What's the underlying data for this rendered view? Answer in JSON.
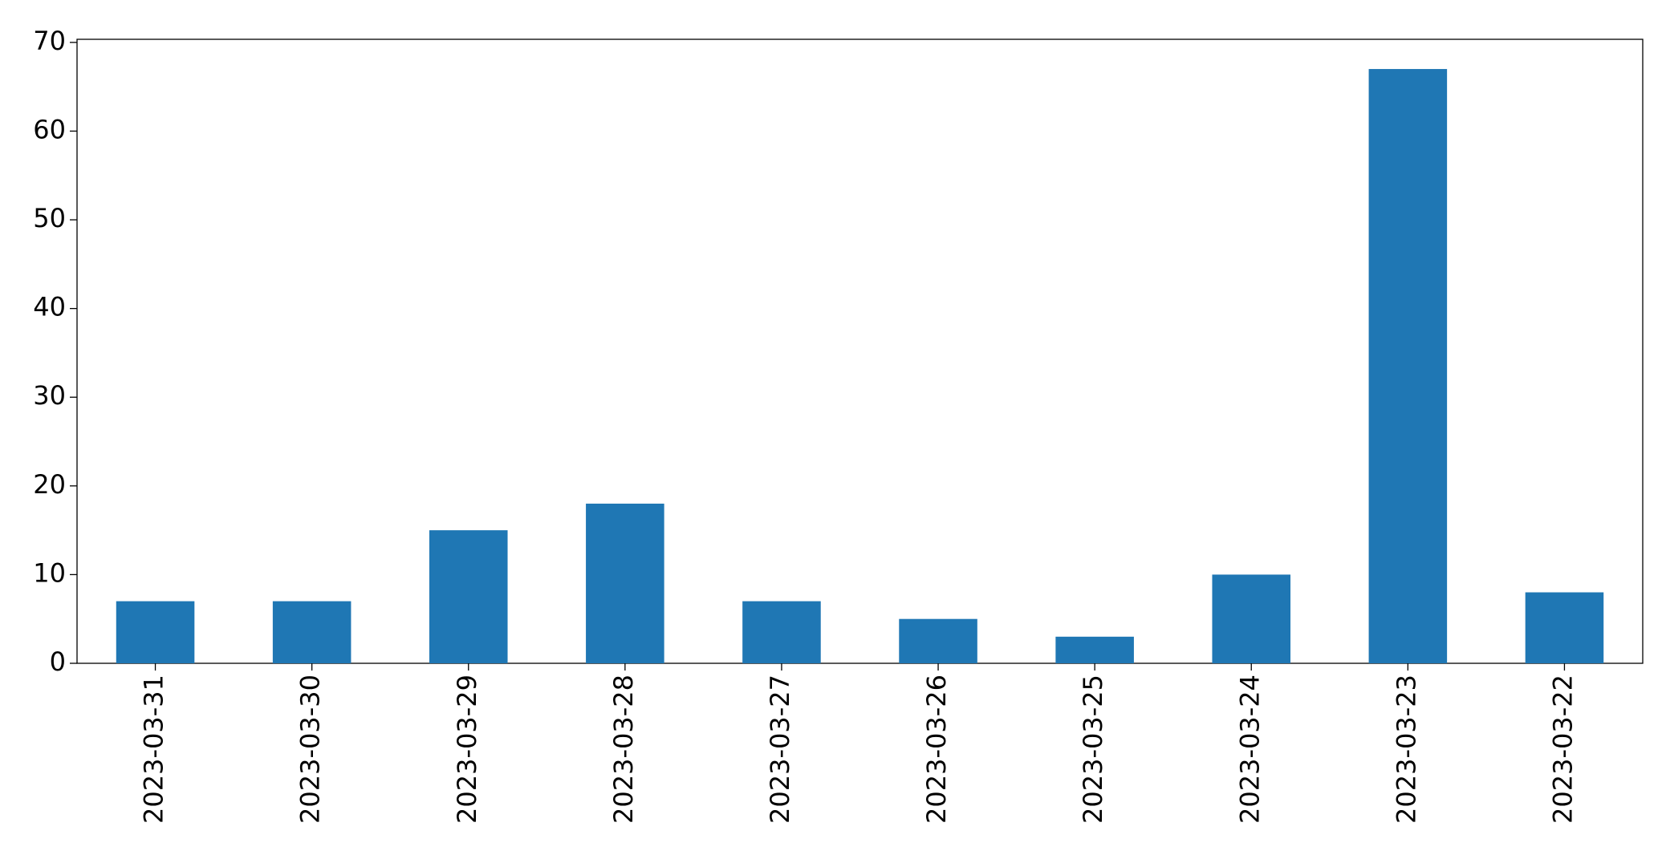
{
  "chart_data": {
    "type": "bar",
    "categories": [
      "2023-03-31",
      "2023-03-30",
      "2023-03-29",
      "2023-03-28",
      "2023-03-27",
      "2023-03-26",
      "2023-03-25",
      "2023-03-24",
      "2023-03-23",
      "2023-03-22"
    ],
    "values": [
      7,
      7,
      15,
      18,
      7,
      5,
      3,
      10,
      67,
      8
    ],
    "color": "#1f77b4",
    "ylim": [
      0,
      70.35
    ],
    "yticks": [
      0,
      10,
      20,
      30,
      40,
      50,
      60,
      70
    ],
    "grid": false
  }
}
